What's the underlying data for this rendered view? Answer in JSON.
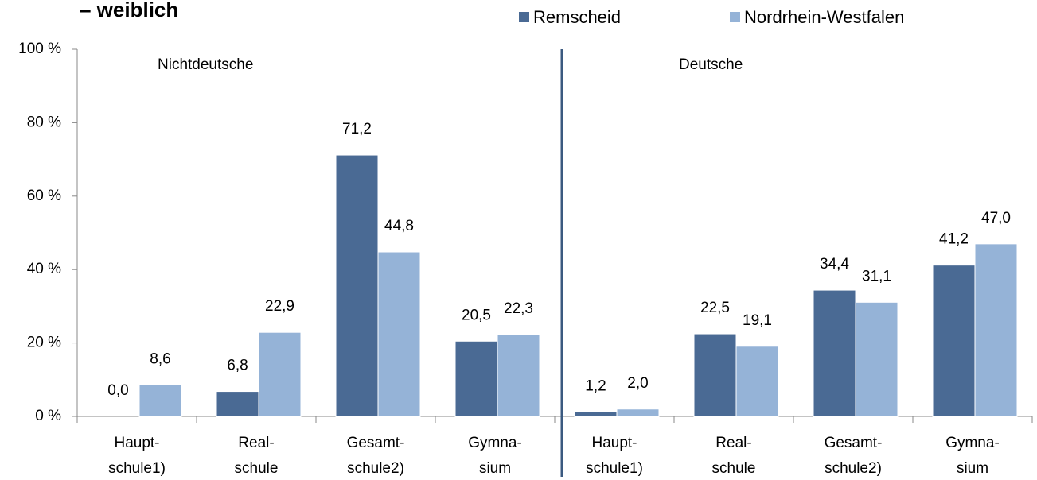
{
  "chart_data": {
    "type": "bar",
    "title": "– weiblich",
    "annotations": [
      "Nichtdeutsche",
      "Deutsche"
    ],
    "categories": [
      "Haupt-\nschule1)",
      "Real-\nschule",
      "Gesamt-\nschule2)",
      "Gymna-\nsium",
      "Haupt-\nschule1)",
      "Real-\nschule",
      "Gesamt-\nschule2)",
      "Gymna-\nsium"
    ],
    "series": [
      {
        "name": "Remscheid",
        "color": "#4a6a94",
        "values": [
          0,
          6.8,
          71.2,
          20.5,
          1.2,
          22.5,
          34.4,
          41.2
        ],
        "value_labels": [
          "0,0",
          "6,8",
          "71,2",
          "20,5",
          "1,2",
          "22,5",
          "34,4",
          "41,2"
        ]
      },
      {
        "name": "Nordrhein-Westfalen",
        "color": "#95b3d7",
        "values": [
          8.6,
          22.9,
          44.8,
          22.3,
          2.0,
          19.1,
          31.1,
          47.0
        ],
        "value_labels": [
          "8,6",
          "22,9",
          "44,8",
          "22,3",
          "2,0",
          "19,1",
          "31,1",
          "47,0"
        ]
      }
    ],
    "ylim": [
      0,
      100
    ],
    "yticks": [
      {
        "value": 0,
        "label": "0 %"
      },
      {
        "value": 20,
        "label": "20 %"
      },
      {
        "value": 40,
        "label": "40 %"
      },
      {
        "value": 60,
        "label": "60 %"
      },
      {
        "value": 80,
        "label": "80 %"
      },
      {
        "value": 100,
        "label": "100 %"
      }
    ]
  }
}
